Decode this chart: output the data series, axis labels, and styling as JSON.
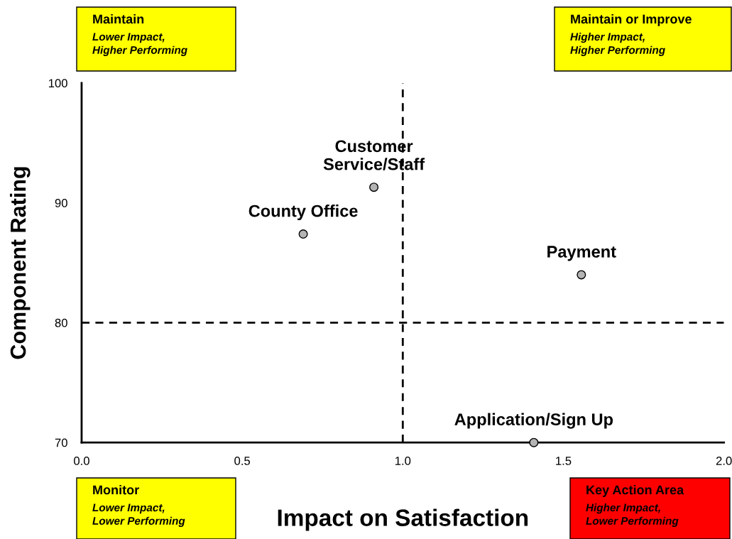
{
  "chart_data": {
    "type": "scatter",
    "xlabel": "Impact on Satisfaction",
    "ylabel": "Component Rating",
    "series": [
      {
        "color": "#b4b4b4",
        "x": [
          0.91,
          0.69,
          1.556,
          1.408
        ],
        "values": [
          91.3,
          87.4,
          84.0,
          70
        ]
      }
    ],
    "marker": "circle",
    "grid": false,
    "legend": false,
    "xlim": [
      0,
      2
    ],
    "xticks": [
      {
        "value": 0,
        "label": "0.0"
      },
      {
        "value": 0.5,
        "label": "0.5"
      },
      {
        "value": 1,
        "label": "1.0"
      },
      {
        "value": 1.5,
        "label": "1.5"
      },
      {
        "value": 2,
        "label": "2.0"
      }
    ],
    "ylim": [
      70,
      100
    ],
    "yticks": [
      70,
      80,
      90,
      100
    ],
    "ref_lines": [
      {
        "axis": "x",
        "value": 1.0,
        "line_style": "dashed",
        "color": "#000000"
      },
      {
        "axis": "y",
        "value": 80,
        "line_style": "dashed",
        "color": "#000000"
      }
    ],
    "annotations": [
      {
        "text": "Customer\nService/Staff",
        "x": 0.91,
        "y": 91.3
      },
      {
        "text": "County Office",
        "x": 0.69,
        "y": 87.4
      },
      {
        "text": "Payment",
        "x": 1.556,
        "y": 84.0
      },
      {
        "text": "Application/Sign Up",
        "x": 1.408,
        "y": 70
      },
      "Maintain\nLower Impact,\nHigher Performing",
      "Maintain or Improve\nHigher Impact,\nHigher Performing",
      "Monitor\nLower Impact,\nLower Performing",
      "Key Action Area\nHigher Impact,\nLower Performing"
    ]
  }
}
